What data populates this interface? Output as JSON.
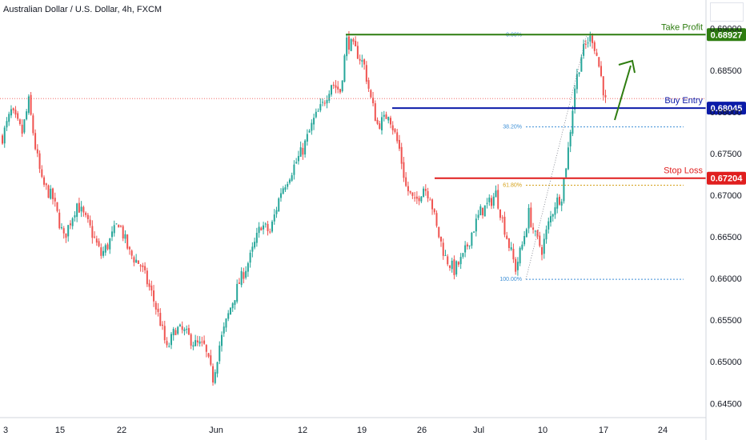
{
  "header": {
    "title": "Australian Dollar / U.S. Dollar, 4h, FXCM"
  },
  "colors": {
    "up": "#26a69a",
    "down": "#ef5350",
    "take_profit": "#2e7d10",
    "buy_entry": "#0b1ba8",
    "stop_loss": "#e01e1e",
    "fib": "#3d8fd6",
    "fib_618": "#d4a017",
    "last_price": "#ef5350",
    "axis_line": "#d1d4dc"
  },
  "chart_data": {
    "type": "candlestick",
    "instrument": "Australian Dollar / U.S. Dollar",
    "timeframe": "4h",
    "broker": "FXCM",
    "y_axis": {
      "ticks": [
        "0.69000",
        "0.68500",
        "0.68000",
        "0.67500",
        "0.67000",
        "0.66500",
        "0.66000",
        "0.65500",
        "0.65000",
        "0.64500"
      ],
      "ylim": [
        0.6433,
        0.6917
      ]
    },
    "x_axis": {
      "ticks": [
        "3",
        "15",
        "22",
        "Jun",
        "12",
        "19",
        "26",
        "Jul",
        "10",
        "17",
        "24"
      ]
    },
    "price_anchors": [
      {
        "i": 0,
        "p": 0.677
      },
      {
        "i": 4,
        "p": 0.68
      },
      {
        "i": 9,
        "p": 0.6775
      },
      {
        "i": 12,
        "p": 0.6812
      },
      {
        "i": 15,
        "p": 0.6758
      },
      {
        "i": 18,
        "p": 0.6715
      },
      {
        "i": 23,
        "p": 0.6696
      },
      {
        "i": 28,
        "p": 0.6648
      },
      {
        "i": 34,
        "p": 0.669
      },
      {
        "i": 40,
        "p": 0.666
      },
      {
        "i": 45,
        "p": 0.6628
      },
      {
        "i": 48,
        "p": 0.664
      },
      {
        "i": 53,
        "p": 0.6668
      },
      {
        "i": 58,
        "p": 0.663
      },
      {
        "i": 63,
        "p": 0.6616
      },
      {
        "i": 68,
        "p": 0.6582
      },
      {
        "i": 72,
        "p": 0.6548
      },
      {
        "i": 75,
        "p": 0.6514
      },
      {
        "i": 79,
        "p": 0.654
      },
      {
        "i": 83,
        "p": 0.6535
      },
      {
        "i": 88,
        "p": 0.6521
      },
      {
        "i": 92,
        "p": 0.6518
      },
      {
        "i": 96,
        "p": 0.648
      },
      {
        "i": 99,
        "p": 0.652
      },
      {
        "i": 104,
        "p": 0.6565
      },
      {
        "i": 108,
        "p": 0.6595
      },
      {
        "i": 113,
        "p": 0.6625
      },
      {
        "i": 118,
        "p": 0.6665
      },
      {
        "i": 122,
        "p": 0.6655
      },
      {
        "i": 127,
        "p": 0.6705
      },
      {
        "i": 132,
        "p": 0.673
      },
      {
        "i": 137,
        "p": 0.6755
      },
      {
        "i": 142,
        "p": 0.679
      },
      {
        "i": 146,
        "p": 0.6808
      },
      {
        "i": 150,
        "p": 0.6835
      },
      {
        "i": 154,
        "p": 0.6825
      },
      {
        "i": 157,
        "p": 0.6885
      },
      {
        "i": 159,
        "p": 0.688
      },
      {
        "i": 162,
        "p": 0.687
      },
      {
        "i": 165,
        "p": 0.6855
      },
      {
        "i": 168,
        "p": 0.6815
      },
      {
        "i": 171,
        "p": 0.6785
      },
      {
        "i": 174,
        "p": 0.679
      },
      {
        "i": 176,
        "p": 0.68
      },
      {
        "i": 178,
        "p": 0.6782
      },
      {
        "i": 181,
        "p": 0.6755
      },
      {
        "i": 184,
        "p": 0.671
      },
      {
        "i": 188,
        "p": 0.669
      },
      {
        "i": 192,
        "p": 0.671
      },
      {
        "i": 195,
        "p": 0.67
      },
      {
        "i": 198,
        "p": 0.666
      },
      {
        "i": 202,
        "p": 0.6625
      },
      {
        "i": 206,
        "p": 0.661
      },
      {
        "i": 210,
        "p": 0.6625
      },
      {
        "i": 214,
        "p": 0.6655
      },
      {
        "i": 218,
        "p": 0.668
      },
      {
        "i": 222,
        "p": 0.669
      },
      {
        "i": 225,
        "p": 0.6702
      },
      {
        "i": 228,
        "p": 0.667
      },
      {
        "i": 231,
        "p": 0.664
      },
      {
        "i": 234,
        "p": 0.6612
      },
      {
        "i": 237,
        "p": 0.664
      },
      {
        "i": 240,
        "p": 0.6678
      },
      {
        "i": 243,
        "p": 0.665
      },
      {
        "i": 246,
        "p": 0.6635
      },
      {
        "i": 249,
        "p": 0.6665
      },
      {
        "i": 252,
        "p": 0.669
      },
      {
        "i": 255,
        "p": 0.67
      },
      {
        "i": 258,
        "p": 0.6755
      },
      {
        "i": 261,
        "p": 0.683
      },
      {
        "i": 264,
        "p": 0.6868
      },
      {
        "i": 267,
        "p": 0.6886
      },
      {
        "i": 269,
        "p": 0.6889
      },
      {
        "i": 271,
        "p": 0.6868
      },
      {
        "i": 273,
        "p": 0.6842
      },
      {
        "i": 275,
        "p": 0.6812
      }
    ],
    "levels": {
      "take_profit": {
        "label": "Take Profit",
        "price": 0.68927,
        "tag": "0.68927"
      },
      "buy_entry": {
        "label": "Buy Entry",
        "price": 0.68045,
        "tag": "0.68045"
      },
      "stop_loss": {
        "label": "Stop Loss",
        "price": 0.67204,
        "tag": "0.67204"
      }
    },
    "last_price": 0.6816,
    "fibonacci": [
      {
        "label": "0.00%",
        "price": 0.68927
      },
      {
        "label": "38.20%",
        "price": 0.6782
      },
      {
        "label": "61.80%",
        "price": 0.6712
      },
      {
        "label": "100.00%",
        "price": 0.6599
      }
    ]
  }
}
